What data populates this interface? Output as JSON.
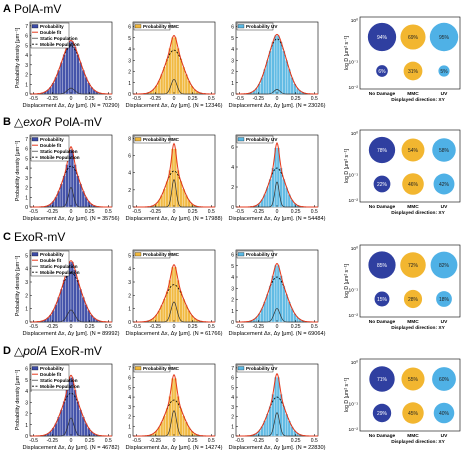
{
  "colors": {
    "blue": "#3c4ba6",
    "gold": "#f1b73b",
    "sky": "#5ab8e3",
    "fit": "#e5391d",
    "static": "#333333",
    "mobile": "#000000",
    "bubble_dark": "#2f3fa0",
    "bubble_gold": "#f2b630",
    "bubble_sky": "#4fb1e6"
  },
  "legend_common": {
    "probability": "Probability",
    "double_fit": "Double fit",
    "static": "Static Population",
    "mobile": "Mobile Population",
    "probability_mmc": "Probability MMC",
    "probability_uv": "Probability UV"
  },
  "axis": {
    "ylabel": "Probability density [μm⁻¹]",
    "xlabel_prefix": "Displacement Δx, Δy [μm].",
    "xticks": [
      "-0.5",
      "-0.25",
      "0",
      "0.25",
      "0.5"
    ]
  },
  "bubble_axis": {
    "ylabel": "log D [μm² s⁻¹]",
    "yticks": [
      "10⁰",
      "10⁻¹",
      "10⁻²"
    ],
    "categories": [
      "No Damage",
      "MMC",
      "UV"
    ],
    "footer": "Displayed direction: XY"
  },
  "chart_data": [
    {
      "type": "bar",
      "panel": "A",
      "title": "PolA-mV",
      "histograms": [
        {
          "color_key": "blue",
          "legend": [
            "Probability",
            "Double fit",
            "Static Population",
            "Mobile Population"
          ],
          "n": "(N = 70290)",
          "yticks": [
            "0",
            "1",
            "2",
            "3",
            "4",
            "5",
            "6",
            "7"
          ],
          "ymax": 7.4,
          "peak": 5.5,
          "static_peak": 0.6,
          "static_sigma": 0.05,
          "mobile_peak": 4.9,
          "mobile_sigma": 0.14
        },
        {
          "color_key": "gold",
          "legend": [
            "Probability MMC"
          ],
          "n": "(N = 12346)",
          "yticks": [
            "0",
            "1",
            "2",
            "3",
            "4",
            "5",
            "6"
          ],
          "ymax": 6.4,
          "peak": 5.2,
          "static_peak": 1.3,
          "static_sigma": 0.04,
          "mobile_peak": 3.9,
          "mobile_sigma": 0.13
        },
        {
          "color_key": "sky",
          "legend": [
            "Probability UV"
          ],
          "n": "(N = 23026)",
          "yticks": [
            "0",
            "1",
            "2",
            "3",
            "4",
            "5",
            "6"
          ],
          "ymax": 6.4,
          "peak": 5.3,
          "static_peak": 0.4,
          "static_sigma": 0.04,
          "mobile_peak": 4.9,
          "mobile_sigma": 0.13
        }
      ],
      "bubbles": [
        {
          "category": "No Damage",
          "row": "top",
          "percent": "94%",
          "color_key": "bubble_dark",
          "size": 94
        },
        {
          "category": "No Damage",
          "row": "bottom",
          "percent": "6%",
          "color_key": "bubble_dark",
          "size": 6
        },
        {
          "category": "MMC",
          "row": "top",
          "percent": "69%",
          "color_key": "bubble_gold",
          "size": 69
        },
        {
          "category": "MMC",
          "row": "bottom",
          "percent": "31%",
          "color_key": "bubble_gold",
          "size": 31
        },
        {
          "category": "UV",
          "row": "top",
          "percent": "95%",
          "color_key": "bubble_sky",
          "size": 95
        },
        {
          "category": "UV",
          "row": "bottom",
          "percent": "5%",
          "color_key": "bubble_sky",
          "size": 5
        }
      ]
    },
    {
      "type": "bar",
      "panel": "B",
      "title": "△exoR PolA-mV",
      "title_italic": "exoR",
      "title_rest": " PolA-mV",
      "histograms": [
        {
          "color_key": "blue",
          "legend": [
            "Probability",
            "Double fit",
            "Static Population",
            "Mobile Population"
          ],
          "n": "(N = 35756)",
          "yticks": [
            "0",
            "1",
            "2",
            "3",
            "4",
            "5",
            "6",
            "7"
          ],
          "ymax": 7.4,
          "peak": 6.2,
          "static_peak": 2.0,
          "static_sigma": 0.035,
          "mobile_peak": 4.2,
          "mobile_sigma": 0.12
        },
        {
          "color_key": "gold",
          "legend": [
            "Probability MMC"
          ],
          "n": "(N = 17988)",
          "yticks": [
            "0",
            "2",
            "4",
            "6",
            "8"
          ],
          "ymax": 8.4,
          "peak": 7.4,
          "static_peak": 3.2,
          "static_sigma": 0.03,
          "mobile_peak": 4.2,
          "mobile_sigma": 0.11
        },
        {
          "color_key": "sky",
          "legend": [
            "Probability UV"
          ],
          "n": "(N = 54484)",
          "yticks": [
            "0",
            "2",
            "4",
            "6"
          ],
          "ymax": 7.2,
          "peak": 6.4,
          "static_peak": 2.5,
          "static_sigma": 0.03,
          "mobile_peak": 3.9,
          "mobile_sigma": 0.11
        }
      ],
      "bubbles": [
        {
          "category": "No Damage",
          "row": "top",
          "percent": "78%",
          "color_key": "bubble_dark",
          "size": 78
        },
        {
          "category": "No Damage",
          "row": "bottom",
          "percent": "22%",
          "color_key": "bubble_dark",
          "size": 22
        },
        {
          "category": "MMC",
          "row": "top",
          "percent": "54%",
          "color_key": "bubble_gold",
          "size": 54
        },
        {
          "category": "MMC",
          "row": "bottom",
          "percent": "46%",
          "color_key": "bubble_gold",
          "size": 46
        },
        {
          "category": "UV",
          "row": "top",
          "percent": "58%",
          "color_key": "bubble_sky",
          "size": 58
        },
        {
          "category": "UV",
          "row": "bottom",
          "percent": "42%",
          "color_key": "bubble_sky",
          "size": 42
        }
      ]
    },
    {
      "type": "bar",
      "panel": "C",
      "title": "ExoR-mV",
      "histograms": [
        {
          "color_key": "blue",
          "legend": [
            "Probability",
            "Double fit",
            "Static Population",
            "Mobile Population"
          ],
          "n": "(N = 89992)",
          "yticks": [
            "0",
            "1",
            "2",
            "3",
            "4",
            "5"
          ],
          "ymax": 5.4,
          "peak": 4.6,
          "static_peak": 0.9,
          "static_sigma": 0.05,
          "mobile_peak": 3.7,
          "mobile_sigma": 0.14
        },
        {
          "color_key": "gold",
          "legend": [
            "Probability MMC"
          ],
          "n": "(N = 61766)",
          "yticks": [
            "0",
            "1",
            "2",
            "3",
            "4",
            "5"
          ],
          "ymax": 5.4,
          "peak": 4.3,
          "static_peak": 1.5,
          "static_sigma": 0.04,
          "mobile_peak": 2.8,
          "mobile_sigma": 0.13
        },
        {
          "color_key": "sky",
          "legend": [
            "Probability UV"
          ],
          "n": "(N = 69064)",
          "yticks": [
            "0",
            "1",
            "2",
            "3",
            "4",
            "5",
            "6"
          ],
          "ymax": 6.4,
          "peak": 5.2,
          "static_peak": 1.2,
          "static_sigma": 0.04,
          "mobile_peak": 4.0,
          "mobile_sigma": 0.13
        }
      ],
      "bubbles": [
        {
          "category": "No Damage",
          "row": "top",
          "percent": "85%",
          "color_key": "bubble_dark",
          "size": 85
        },
        {
          "category": "No Damage",
          "row": "bottom",
          "percent": "15%",
          "color_key": "bubble_dark",
          "size": 15
        },
        {
          "category": "MMC",
          "row": "top",
          "percent": "72%",
          "color_key": "bubble_gold",
          "size": 72
        },
        {
          "category": "MMC",
          "row": "bottom",
          "percent": "28%",
          "color_key": "bubble_gold",
          "size": 28
        },
        {
          "category": "UV",
          "row": "top",
          "percent": "82%",
          "color_key": "bubble_sky",
          "size": 82
        },
        {
          "category": "UV",
          "row": "bottom",
          "percent": "18%",
          "color_key": "bubble_sky",
          "size": 18
        }
      ]
    },
    {
      "type": "bar",
      "panel": "D",
      "title": "△polA ExoR-mV",
      "title_italic": "polA",
      "title_rest": " ExoR-mV",
      "histograms": [
        {
          "color_key": "blue",
          "legend": [
            "Probability",
            "Double fit",
            "Static Population",
            "Mobile Population"
          ],
          "n": "(N = 46782)",
          "yticks": [
            "0",
            "1",
            "2",
            "3",
            "4",
            "5",
            "6"
          ],
          "ymax": 6.4,
          "peak": 5.4,
          "static_peak": 1.6,
          "static_sigma": 0.04,
          "mobile_peak": 3.8,
          "mobile_sigma": 0.13
        },
        {
          "color_key": "gold",
          "legend": [
            "Probability MMC"
          ],
          "n": "(N = 14274)",
          "yticks": [
            "0",
            "1",
            "2",
            "3",
            "4",
            "5",
            "6",
            "7"
          ],
          "ymax": 7.4,
          "peak": 6.3,
          "static_peak": 2.6,
          "static_sigma": 0.035,
          "mobile_peak": 3.7,
          "mobile_sigma": 0.12
        },
        {
          "color_key": "sky",
          "legend": [
            "Probability UV"
          ],
          "n": "(N = 22830)",
          "yticks": [
            "0",
            "1",
            "2",
            "3",
            "4",
            "5",
            "6",
            "7"
          ],
          "ymax": 7.4,
          "peak": 6.4,
          "static_peak": 2.4,
          "static_sigma": 0.035,
          "mobile_peak": 4.0,
          "mobile_sigma": 0.12
        }
      ],
      "bubbles": [
        {
          "category": "No Damage",
          "row": "top",
          "percent": "71%",
          "color_key": "bubble_dark",
          "size": 71
        },
        {
          "category": "No Damage",
          "row": "bottom",
          "percent": "29%",
          "color_key": "bubble_dark",
          "size": 29
        },
        {
          "category": "MMC",
          "row": "top",
          "percent": "55%",
          "color_key": "bubble_gold",
          "size": 55
        },
        {
          "category": "MMC",
          "row": "bottom",
          "percent": "45%",
          "color_key": "bubble_gold",
          "size": 45
        },
        {
          "category": "UV",
          "row": "top",
          "percent": "60%",
          "color_key": "bubble_sky",
          "size": 60
        },
        {
          "category": "UV",
          "row": "bottom",
          "percent": "40%",
          "color_key": "bubble_sky",
          "size": 40
        }
      ]
    }
  ]
}
